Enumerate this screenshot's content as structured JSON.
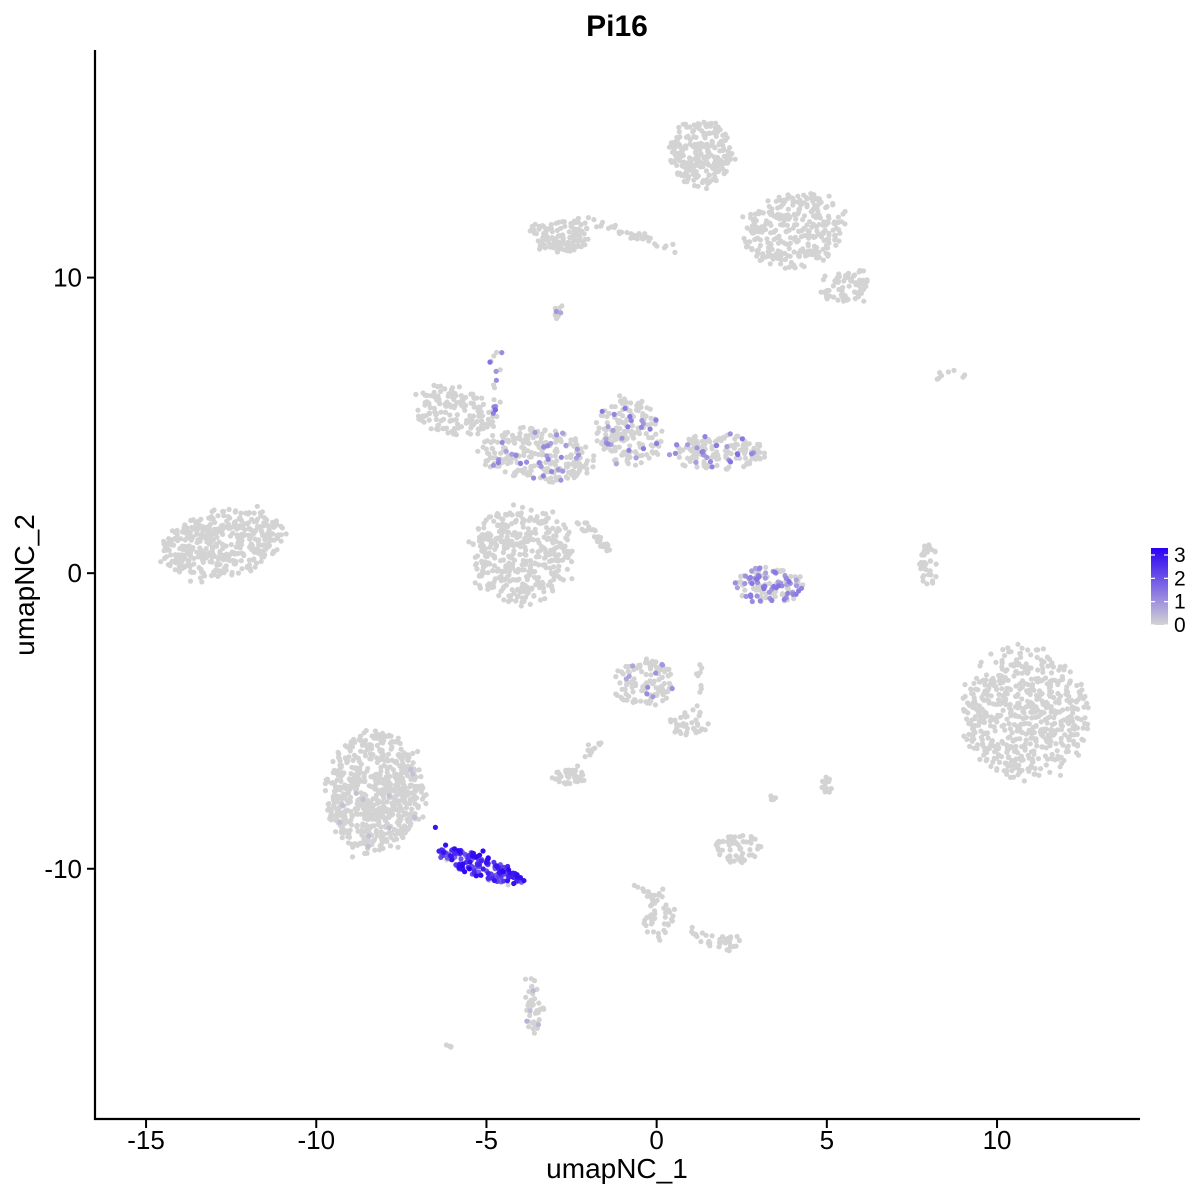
{
  "chart_data": {
    "type": "scatter",
    "title": "Pi16",
    "xlabel": "umapNC_1",
    "ylabel": "umapNC_2",
    "xlim": [
      -16.5,
      14.2
    ],
    "ylim": [
      -18.5,
      17.7
    ],
    "xticks": [
      -15,
      -10,
      -5,
      0,
      5,
      10
    ],
    "yticks": [
      -10,
      0,
      10
    ],
    "xtick_labels": [
      "-15",
      "-10",
      "-5",
      "0",
      "5",
      "10"
    ],
    "ytick_labels": [
      "-10",
      "0",
      "10"
    ],
    "grid": false,
    "color_scale": {
      "low": "#d3d3d3",
      "high": "#2a00f5",
      "min": 0,
      "max": 3.3
    },
    "legend": {
      "position": "right",
      "ticks": [
        0,
        1,
        2,
        3
      ],
      "tick_labels": [
        "0",
        "1",
        "2",
        "3"
      ]
    },
    "clusters": [
      {
        "cx": -12.8,
        "cy": 1.0,
        "rx": 1.8,
        "ry": 1.1,
        "n": 420,
        "tilt": 0.25,
        "expr": 0,
        "p": 0
      },
      {
        "cx": -8.3,
        "cy": -7.4,
        "rx": 1.4,
        "ry": 2.0,
        "n": 700,
        "tilt": 0,
        "expr": 0.2,
        "p": 0.02
      },
      {
        "cx": -5.2,
        "cy": -9.9,
        "rx": 1.3,
        "ry": 0.35,
        "n": 150,
        "tilt": -0.42,
        "expr": 2.8,
        "p": 0.9
      },
      {
        "cx": -6.0,
        "cy": 5.5,
        "rx": 1.2,
        "ry": 0.8,
        "n": 150,
        "tilt": -0.3,
        "expr": 0,
        "p": 0
      },
      {
        "cx": -4.0,
        "cy": 0.6,
        "rx": 1.5,
        "ry": 1.6,
        "n": 400,
        "tilt": 0,
        "expr": 0,
        "p": 0
      },
      {
        "cx": -3.5,
        "cy": 4.0,
        "rx": 1.6,
        "ry": 0.9,
        "n": 250,
        "tilt": -0.1,
        "expr": 1.2,
        "p": 0.12
      },
      {
        "cx": -0.8,
        "cy": 4.8,
        "rx": 1.0,
        "ry": 1.1,
        "n": 170,
        "tilt": 0,
        "expr": 1.2,
        "p": 0.12
      },
      {
        "cx": 1.8,
        "cy": 4.1,
        "rx": 1.3,
        "ry": 0.6,
        "n": 160,
        "tilt": 0,
        "expr": 1.4,
        "p": 0.12
      },
      {
        "cx": -2.8,
        "cy": 11.4,
        "rx": 0.9,
        "ry": 0.55,
        "n": 120,
        "tilt": 0,
        "expr": 0,
        "p": 0
      },
      {
        "cx": 1.3,
        "cy": 14.2,
        "rx": 0.9,
        "ry": 1.1,
        "n": 250,
        "tilt": 0,
        "expr": 0,
        "p": 0
      },
      {
        "cx": 4.0,
        "cy": 11.6,
        "rx": 1.6,
        "ry": 1.2,
        "n": 300,
        "tilt": 0.25,
        "expr": 0,
        "p": 0
      },
      {
        "cx": 5.5,
        "cy": 9.7,
        "rx": 0.8,
        "ry": 0.5,
        "n": 70,
        "tilt": 0,
        "expr": 0,
        "p": 0
      },
      {
        "cx": 3.3,
        "cy": -0.4,
        "rx": 1.0,
        "ry": 0.6,
        "n": 130,
        "tilt": 0,
        "expr": 1.3,
        "p": 0.5
      },
      {
        "cx": 10.8,
        "cy": -4.8,
        "rx": 1.8,
        "ry": 2.2,
        "n": 600,
        "tilt": 0,
        "expr": 0,
        "p": 0
      },
      {
        "cx": -0.4,
        "cy": -3.7,
        "rx": 0.9,
        "ry": 0.8,
        "n": 120,
        "tilt": 0,
        "expr": 1.0,
        "p": 0.08
      },
      {
        "cx": 0.9,
        "cy": -5.1,
        "rx": 0.6,
        "ry": 0.4,
        "n": 30,
        "tilt": 0,
        "expr": 0,
        "p": 0
      },
      {
        "cx": -2.6,
        "cy": -6.9,
        "rx": 0.5,
        "ry": 0.25,
        "n": 40,
        "tilt": 0,
        "expr": 0,
        "p": 0
      },
      {
        "cx": 2.4,
        "cy": -9.3,
        "rx": 0.7,
        "ry": 0.5,
        "n": 60,
        "tilt": 0,
        "expr": 0,
        "p": 0
      },
      {
        "cx": 8.0,
        "cy": 0.3,
        "rx": 0.3,
        "ry": 0.7,
        "n": 40,
        "tilt": 0,
        "expr": 0,
        "p": 0
      },
      {
        "cx": 0.0,
        "cy": -11.5,
        "rx": 0.4,
        "ry": 0.9,
        "n": 40,
        "tilt": 0,
        "expr": 0,
        "p": 0
      },
      {
        "cx": 2.0,
        "cy": -12.5,
        "rx": 0.5,
        "ry": 0.3,
        "n": 25,
        "tilt": 0,
        "expr": 0,
        "p": 0
      },
      {
        "cx": -3.6,
        "cy": -14.8,
        "rx": 0.3,
        "ry": 0.8,
        "n": 30,
        "tilt": 0,
        "expr": 0.5,
        "p": 0.1
      },
      {
        "cx": -2.9,
        "cy": 8.9,
        "rx": 0.15,
        "ry": 0.3,
        "n": 10,
        "tilt": 0,
        "expr": 1.0,
        "p": 0.4
      },
      {
        "cx": 5.0,
        "cy": -7.2,
        "rx": 0.15,
        "ry": 0.3,
        "n": 12,
        "tilt": 0,
        "expr": 0,
        "p": 0
      },
      {
        "cx": 3.4,
        "cy": -7.6,
        "rx": 0.1,
        "ry": 0.1,
        "n": 5,
        "tilt": 0,
        "expr": 0,
        "p": 0
      },
      {
        "cx": 8.7,
        "cy": 6.7,
        "rx": 0.6,
        "ry": 0.2,
        "n": 8,
        "tilt": 0,
        "expr": 0,
        "p": 0
      },
      {
        "cx": -6.1,
        "cy": -16.0,
        "rx": 0.1,
        "ry": 0.1,
        "n": 4,
        "tilt": 0,
        "expr": 0,
        "p": 0
      }
    ],
    "high_points": [
      [
        -4.0,
        -10.3
      ],
      [
        -3.9,
        -10.4
      ],
      [
        -4.1,
        -10.2
      ],
      [
        -4.5,
        -10.1
      ],
      [
        -5.0,
        -9.8
      ],
      [
        -5.3,
        -9.6
      ],
      [
        -5.8,
        -9.4
      ],
      [
        -5.5,
        -10.0
      ],
      [
        -4.7,
        -9.9
      ],
      [
        -6.2,
        -9.2
      ],
      [
        -4.2,
        -10.5
      ],
      [
        -5.1,
        -9.4
      ],
      [
        -6.5,
        -8.6
      ]
    ],
    "strands": [
      {
        "x1": -4.8,
        "y1": 3.5,
        "x2": -4.7,
        "y2": 7.5,
        "n": 25,
        "expr": 1.5,
        "p": 0.25
      },
      {
        "x1": -2.3,
        "y1": 1.8,
        "x2": -1.3,
        "y2": 0.7,
        "n": 30,
        "expr": 0,
        "p": 0
      },
      {
        "x1": -2.3,
        "y1": 12.0,
        "x2": 0.5,
        "y2": 11.0,
        "n": 40,
        "expr": 0,
        "p": 0
      },
      {
        "x1": 1.3,
        "y1": -3.0,
        "x2": 1.2,
        "y2": -5.6,
        "n": 15,
        "expr": 0,
        "p": 0
      },
      {
        "x1": -1.5,
        "y1": -5.5,
        "x2": -2.6,
        "y2": -6.8,
        "n": 12,
        "expr": 0,
        "p": 0
      },
      {
        "x1": -0.7,
        "y1": -10.5,
        "x2": 1.5,
        "y2": -12.5,
        "n": 25,
        "expr": 0,
        "p": 0
      },
      {
        "x1": -3.7,
        "y1": -13.6,
        "x2": -3.6,
        "y2": -15.6,
        "n": 15,
        "expr": 0.5,
        "p": 0.1
      },
      {
        "x1": 6.0,
        "y1": 9.2,
        "x2": 6.0,
        "y2": 10.4,
        "n": 15,
        "expr": 0,
        "p": 0
      },
      {
        "x1": -1.1,
        "y1": 6.0,
        "x2": -0.4,
        "y2": 4.5,
        "n": 15,
        "expr": 1.6,
        "p": 0.4
      }
    ]
  }
}
